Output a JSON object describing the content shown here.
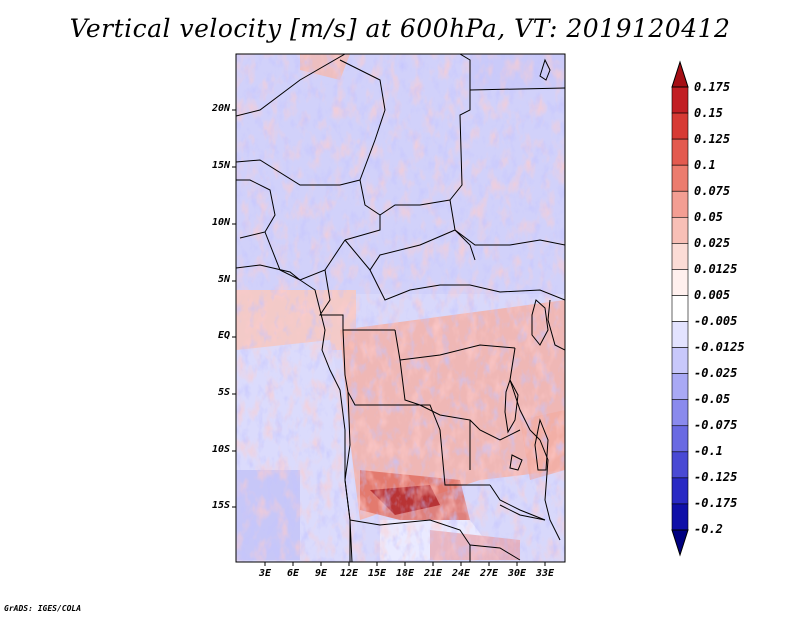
{
  "title": "Vertical velocity [m/s] at 600hPa, VT: 2019120412",
  "credit": "GrADS: IGES/COLA",
  "map": {
    "lat_labels": [
      "20N",
      "15N",
      "10N",
      "5N",
      "EQ",
      "5S",
      "10S",
      "15S"
    ],
    "lon_labels": [
      "3E",
      "6E",
      "9E",
      "12E",
      "15E",
      "18E",
      "21E",
      "24E",
      "27E",
      "30E",
      "33E"
    ]
  },
  "colorbar": {
    "labels": [
      "0.175",
      "0.15",
      "0.125",
      "0.1",
      "0.075",
      "0.05",
      "0.025",
      "0.0125",
      "0.005",
      "-0.005",
      "-0.0125",
      "-0.025",
      "-0.05",
      "-0.075",
      "-0.1",
      "-0.125",
      "-0.175",
      "-0.2"
    ],
    "colors": [
      "#a50f15",
      "#c21f24",
      "#d73a34",
      "#e35a4f",
      "#ec7c6e",
      "#f39e93",
      "#f8bfb6",
      "#fcdcd6",
      "#fff0ee",
      "#ffffff",
      "#e3e3ff",
      "#c8c8fb",
      "#a9a9f5",
      "#8a8aed",
      "#6a6ae2",
      "#4a4ad4",
      "#2a2ac4",
      "#1010a8",
      "#000080"
    ]
  }
}
